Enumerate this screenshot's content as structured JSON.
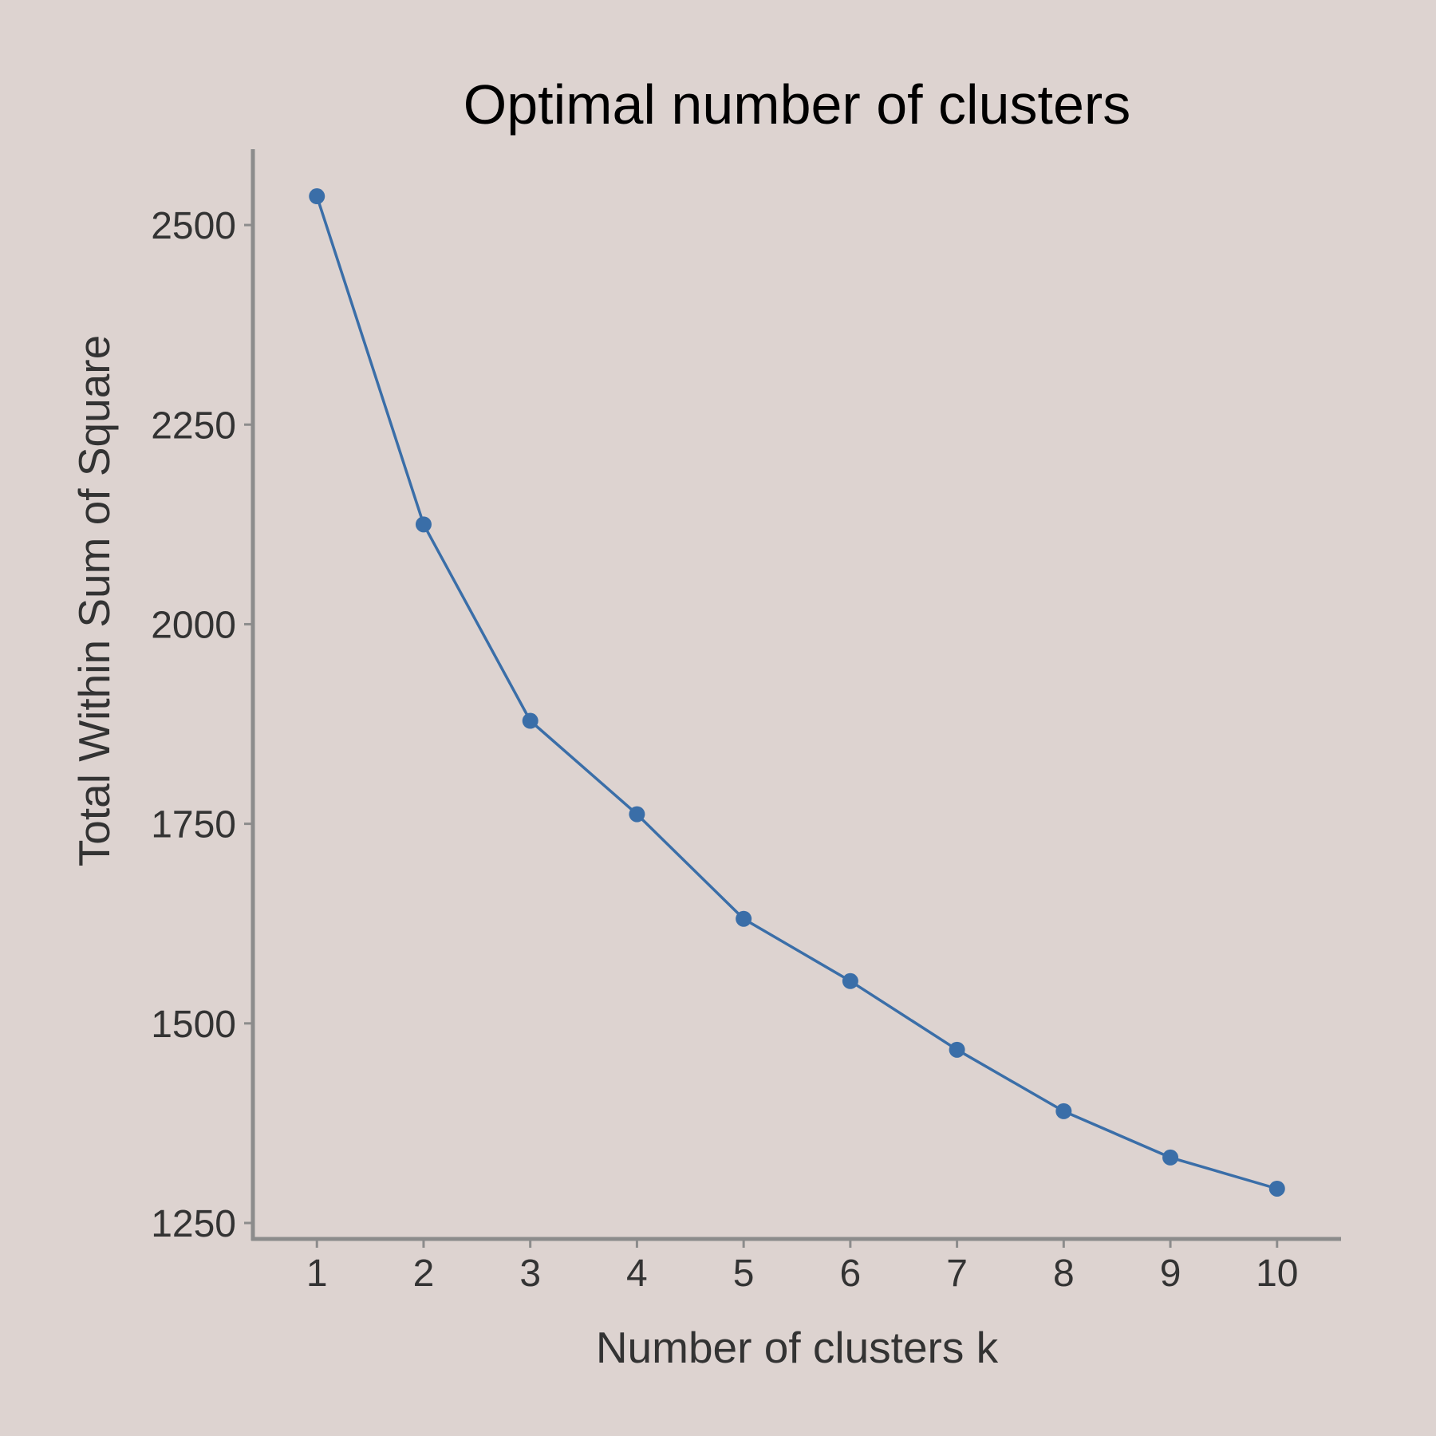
{
  "chart_data": {
    "type": "line",
    "title": "Optimal number of clusters",
    "xlabel": "Number of clusters k",
    "ylabel": "Total Within Sum of Square",
    "x": [
      1,
      2,
      3,
      4,
      5,
      6,
      7,
      8,
      9,
      10
    ],
    "x_tick_labels": [
      "1",
      "2",
      "3",
      "4",
      "5",
      "6",
      "7",
      "8",
      "9",
      "10"
    ],
    "values": [
      2536,
      2125,
      1879,
      1762,
      1631,
      1553,
      1467,
      1390,
      1332,
      1293
    ],
    "y_ticks": [
      1250,
      1500,
      1750,
      2000,
      2250,
      2500
    ],
    "y_tick_labels": [
      "1250",
      "1500",
      "1750",
      "2000",
      "2250",
      "2500"
    ],
    "xlim": [
      0.4,
      10.6
    ],
    "ylim": [
      1230,
      2595
    ],
    "grid": false,
    "markers": true,
    "colors": {
      "line": "#3a6ea8",
      "axis": "#8c8c8c",
      "text": "#333333",
      "title": "#000000",
      "background": "#ddd3d0"
    }
  }
}
